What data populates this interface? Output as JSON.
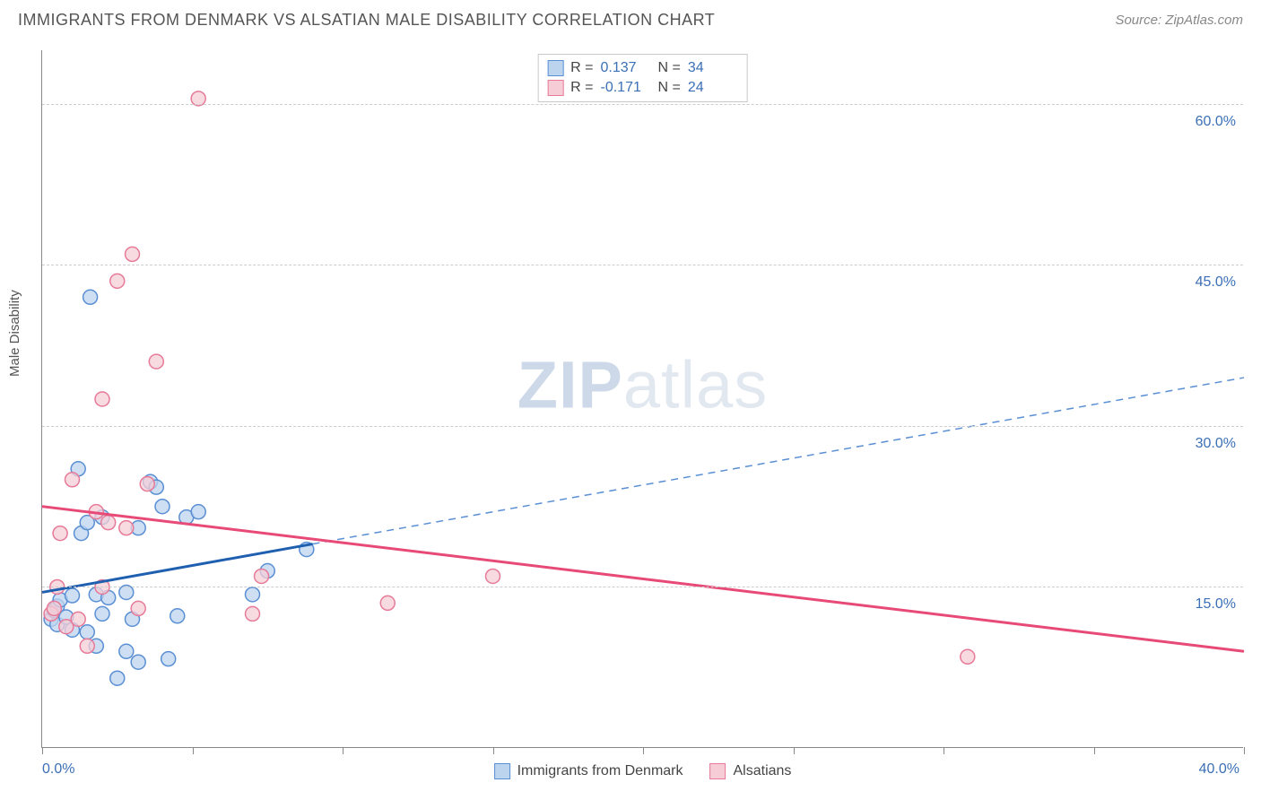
{
  "header": {
    "title": "IMMIGRANTS FROM DENMARK VS ALSATIAN MALE DISABILITY CORRELATION CHART",
    "source": "Source: ZipAtlas.com"
  },
  "chart": {
    "type": "scatter",
    "ylabel": "Male Disability",
    "watermark_bold": "ZIP",
    "watermark_rest": "atlas",
    "background_color": "#ffffff",
    "grid_color": "#cccccc",
    "axis_color": "#888888",
    "xlim": [
      0,
      40
    ],
    "ylim": [
      0,
      65
    ],
    "x_ticks": [
      0,
      5,
      10,
      15,
      20,
      25,
      30,
      35,
      40
    ],
    "x_tick_labels": {
      "0": "0.0%",
      "40": "40.0%"
    },
    "y_gridlines": [
      15,
      30,
      45,
      60
    ],
    "y_tick_labels": {
      "15": "15.0%",
      "30": "30.0%",
      "45": "45.0%",
      "60": "60.0%"
    },
    "y_tick_color": "#3b6fb6",
    "x_tick_color": "#3b6fb6",
    "series": [
      {
        "id": "denmark",
        "label": "Immigrants from Denmark",
        "R": "0.137",
        "N": "34",
        "fill": "#bdd4ef",
        "stroke": "#5a8fd4",
        "line_solid_color": "#1f5fb0",
        "line_dash_color": "#5a8fd4",
        "marker_radius": 8,
        "marker_opacity": 0.75,
        "trend_start": {
          "x": 0,
          "y": 14.5
        },
        "trend_solid_end": {
          "x": 9,
          "y": 19
        },
        "trend_end": {
          "x": 40,
          "y": 34.5
        },
        "points": [
          {
            "x": 0.3,
            "y": 12.0
          },
          {
            "x": 0.4,
            "y": 12.8
          },
          {
            "x": 0.5,
            "y": 11.5
          },
          {
            "x": 0.5,
            "y": 13.2
          },
          {
            "x": 0.6,
            "y": 13.8
          },
          {
            "x": 0.8,
            "y": 12.2
          },
          {
            "x": 1.0,
            "y": 14.2
          },
          {
            "x": 1.0,
            "y": 11.0
          },
          {
            "x": 1.2,
            "y": 26.0
          },
          {
            "x": 1.3,
            "y": 20.0
          },
          {
            "x": 1.5,
            "y": 21.0
          },
          {
            "x": 1.5,
            "y": 10.8
          },
          {
            "x": 1.6,
            "y": 42.0
          },
          {
            "x": 1.8,
            "y": 14.3
          },
          {
            "x": 1.8,
            "y": 9.5
          },
          {
            "x": 2.0,
            "y": 12.5
          },
          {
            "x": 2.0,
            "y": 21.5
          },
          {
            "x": 2.2,
            "y": 14.0
          },
          {
            "x": 2.5,
            "y": 6.5
          },
          {
            "x": 2.8,
            "y": 9.0
          },
          {
            "x": 2.8,
            "y": 14.5
          },
          {
            "x": 3.0,
            "y": 12.0
          },
          {
            "x": 3.2,
            "y": 20.5
          },
          {
            "x": 3.2,
            "y": 8.0
          },
          {
            "x": 3.6,
            "y": 24.8
          },
          {
            "x": 3.8,
            "y": 24.3
          },
          {
            "x": 4.0,
            "y": 22.5
          },
          {
            "x": 4.2,
            "y": 8.3
          },
          {
            "x": 4.5,
            "y": 12.3
          },
          {
            "x": 4.8,
            "y": 21.5
          },
          {
            "x": 5.2,
            "y": 22.0
          },
          {
            "x": 7.0,
            "y": 14.3
          },
          {
            "x": 7.5,
            "y": 16.5
          },
          {
            "x": 8.8,
            "y": 18.5
          }
        ]
      },
      {
        "id": "alsatians",
        "label": "Alsatians",
        "R": "-0.171",
        "N": "24",
        "fill": "#f6cdd7",
        "stroke": "#e67a98",
        "line_solid_color": "#e84a77",
        "line_dash_color": "#e84a77",
        "marker_radius": 8,
        "marker_opacity": 0.75,
        "trend_start": {
          "x": 0,
          "y": 22.5
        },
        "trend_solid_end": {
          "x": 40,
          "y": 9.0
        },
        "trend_end": {
          "x": 40,
          "y": 9.0
        },
        "points": [
          {
            "x": 0.3,
            "y": 12.5
          },
          {
            "x": 0.4,
            "y": 13.0
          },
          {
            "x": 0.5,
            "y": 15.0
          },
          {
            "x": 0.6,
            "y": 20.0
          },
          {
            "x": 0.8,
            "y": 11.3
          },
          {
            "x": 1.0,
            "y": 25.0
          },
          {
            "x": 1.2,
            "y": 12.0
          },
          {
            "x": 1.5,
            "y": 9.5
          },
          {
            "x": 1.8,
            "y": 22.0
          },
          {
            "x": 2.0,
            "y": 15.0
          },
          {
            "x": 2.0,
            "y": 32.5
          },
          {
            "x": 2.2,
            "y": 21.0
          },
          {
            "x": 2.5,
            "y": 43.5
          },
          {
            "x": 2.8,
            "y": 20.5
          },
          {
            "x": 3.0,
            "y": 46.0
          },
          {
            "x": 3.2,
            "y": 13.0
          },
          {
            "x": 3.5,
            "y": 24.6
          },
          {
            "x": 3.8,
            "y": 36.0
          },
          {
            "x": 5.2,
            "y": 60.5
          },
          {
            "x": 7.0,
            "y": 12.5
          },
          {
            "x": 7.3,
            "y": 16.0
          },
          {
            "x": 11.5,
            "y": 13.5
          },
          {
            "x": 15.0,
            "y": 16.0
          },
          {
            "x": 30.8,
            "y": 8.5
          }
        ]
      }
    ],
    "legend_top": {
      "r_label": "R =",
      "n_label": "N ="
    }
  }
}
